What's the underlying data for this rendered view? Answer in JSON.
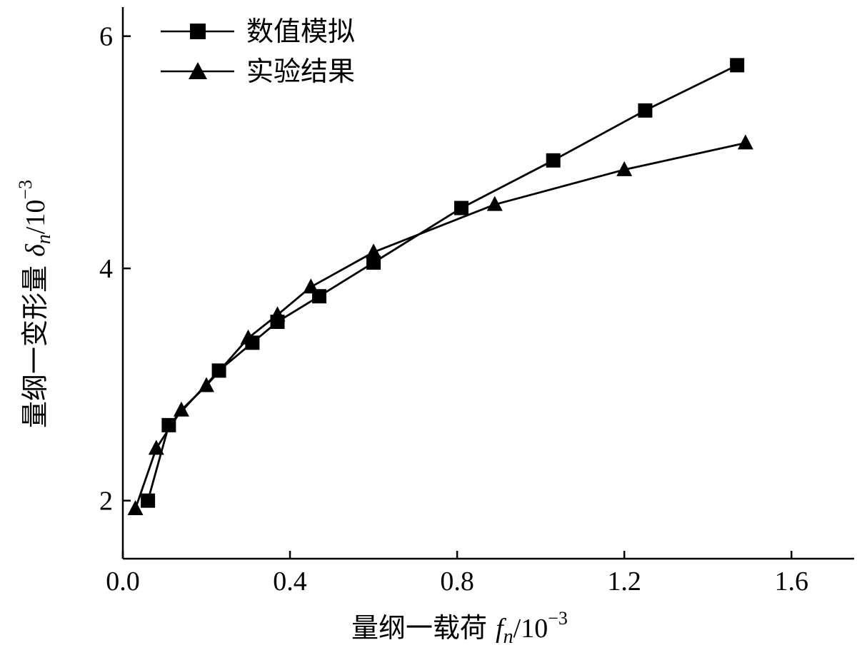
{
  "chart_data": {
    "type": "line",
    "xlabel": {
      "prefix": "量纲一载荷 ",
      "symbol": "f",
      "subscript": "n",
      "unit": "/10",
      "exponent": "−3"
    },
    "ylabel": {
      "prefix": "量纲一变形量 ",
      "symbol": "δ",
      "subscript": "n",
      "unit": "/10",
      "exponent": "−3"
    },
    "xlim": [
      0.0,
      1.75
    ],
    "ylim": [
      1.5,
      6.25
    ],
    "xticks": [
      0.0,
      0.4,
      0.8,
      1.2,
      1.6
    ],
    "xtick_labels": [
      "0.0",
      "0.4",
      "0.8",
      "1.2",
      "1.6"
    ],
    "yticks": [
      2,
      4,
      6
    ],
    "ytick_labels": [
      "2",
      "4",
      "6"
    ],
    "legend_position": "top-left",
    "grid": false,
    "series": [
      {
        "name": "数值模拟",
        "marker": "square",
        "color": "#000000",
        "x": [
          0.06,
          0.11,
          0.23,
          0.31,
          0.37,
          0.47,
          0.6,
          0.81,
          1.03,
          1.25,
          1.47
        ],
        "y": [
          2.0,
          2.65,
          3.12,
          3.36,
          3.54,
          3.76,
          4.05,
          4.52,
          4.93,
          5.36,
          5.75
        ]
      },
      {
        "name": "实验结果",
        "marker": "triangle",
        "color": "#000000",
        "x": [
          0.03,
          0.08,
          0.14,
          0.2,
          0.3,
          0.37,
          0.45,
          0.6,
          0.89,
          1.2,
          1.49
        ],
        "y": [
          1.93,
          2.45,
          2.78,
          2.99,
          3.4,
          3.6,
          3.84,
          4.14,
          4.55,
          4.85,
          5.08
        ]
      }
    ]
  }
}
